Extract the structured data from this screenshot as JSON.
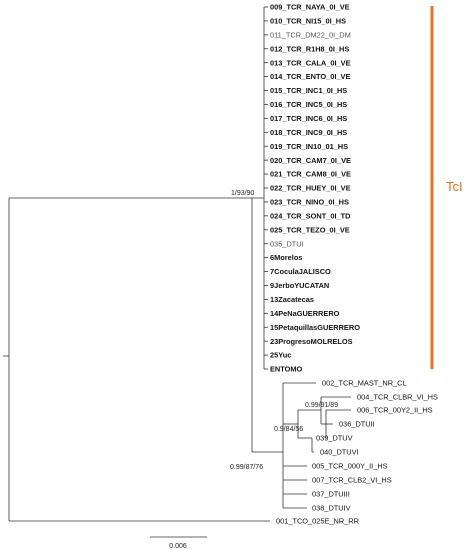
{
  "tree": {
    "taxa": [
      {
        "id": "t1",
        "label": "009_TCR_NAYA_0I_VE",
        "style": "bold"
      },
      {
        "id": "t2",
        "label": "010_TCR_NI15_0I_HS",
        "style": "bold"
      },
      {
        "id": "t3",
        "label": "011_TCR_DM22_0I_DM",
        "style": "light"
      },
      {
        "id": "t4",
        "label": "012_TCR_R1H8_0I_HS",
        "style": "bold"
      },
      {
        "id": "t5",
        "label": "013_TCR_CALA_0I_VE",
        "style": "bold"
      },
      {
        "id": "t6",
        "label": "014_TCR_ENTO_0I_VE",
        "style": "bold"
      },
      {
        "id": "t7",
        "label": "015_TCR_INC1_0I_HS",
        "style": "bold"
      },
      {
        "id": "t8",
        "label": "016_TCR_INC5_0I_HS",
        "style": "bold"
      },
      {
        "id": "t9",
        "label": "017_TCR_INC6_0I_HS",
        "style": "bold"
      },
      {
        "id": "t10",
        "label": "018_TCR_INC9_0I_HS",
        "style": "bold"
      },
      {
        "id": "t11",
        "label": "019_TCR_IN10_01_HS",
        "style": "bold"
      },
      {
        "id": "t12",
        "label": "020_TCR_CAM7_0I_VE",
        "style": "bold"
      },
      {
        "id": "t13",
        "label": "021_TCR_CAM8_0I_VE",
        "style": "bold"
      },
      {
        "id": "t14",
        "label": "022_TCR_HUEY_0I_VE",
        "style": "bold"
      },
      {
        "id": "t15",
        "label": "023_TCR_NINO_0I_HS",
        "style": "bold"
      },
      {
        "id": "t16",
        "label": "024_TCR_SONT_0I_TD",
        "style": "bold"
      },
      {
        "id": "t17",
        "label": "025_TCR_TEZO_0I_VE",
        "style": "bold"
      },
      {
        "id": "t18",
        "label": "035_DTUI",
        "style": "light"
      },
      {
        "id": "t19",
        "label": "6Morelos",
        "style": "bold"
      },
      {
        "id": "t20",
        "label": "7CoculaJALISCO",
        "style": "bold"
      },
      {
        "id": "t21",
        "label": "9JerboYUCATAN",
        "style": "bold"
      },
      {
        "id": "t22",
        "label": "13Zacatecas",
        "style": "bold"
      },
      {
        "id": "t23",
        "label": "14PeNaGUERRERO",
        "style": "bold"
      },
      {
        "id": "t24",
        "label": "15PetaquillasGUERRERO",
        "style": "bold"
      },
      {
        "id": "t25",
        "label": "23ProgresoMOLRELOS",
        "style": "bold"
      },
      {
        "id": "t26",
        "label": "25Yuc",
        "style": "bold"
      },
      {
        "id": "t27",
        "label": "ENTOMO",
        "style": "bold"
      },
      {
        "id": "t28",
        "label": "002_TCR_MAST_NR_CL",
        "style": "normal"
      },
      {
        "id": "t29",
        "label": "004_TCR_CLBR_VI_HS",
        "style": "normal"
      },
      {
        "id": "t30",
        "label": "006_TCR_00Y2_II_HS",
        "style": "normal"
      },
      {
        "id": "t31",
        "label": "036_DTUII",
        "style": "normal"
      },
      {
        "id": "t32",
        "label": "039_DTUV",
        "style": "normal"
      },
      {
        "id": "t33",
        "label": "040_DTUVI",
        "style": "normal"
      },
      {
        "id": "t34",
        "label": "005_TCR_000Y_II_HS",
        "style": "normal"
      },
      {
        "id": "t35",
        "label": "007_TCR_CLB2_VI_HS",
        "style": "normal"
      },
      {
        "id": "t36",
        "label": "037_DTUIII",
        "style": "normal"
      },
      {
        "id": "t37",
        "label": "038_DTUIV",
        "style": "normal"
      },
      {
        "id": "t38",
        "label": "001_TCO_025E_NR_RR",
        "style": "normal"
      }
    ],
    "support_values": {
      "tci_node": "1/93/90",
      "n_039_040": "0.9/84/56",
      "n_004_036": "0.99/91/89",
      "n_lower": "0.99/87/76"
    },
    "clade": {
      "label": "TcI",
      "color": "#E8711E"
    },
    "scale_bar": {
      "label": "0.006"
    }
  }
}
